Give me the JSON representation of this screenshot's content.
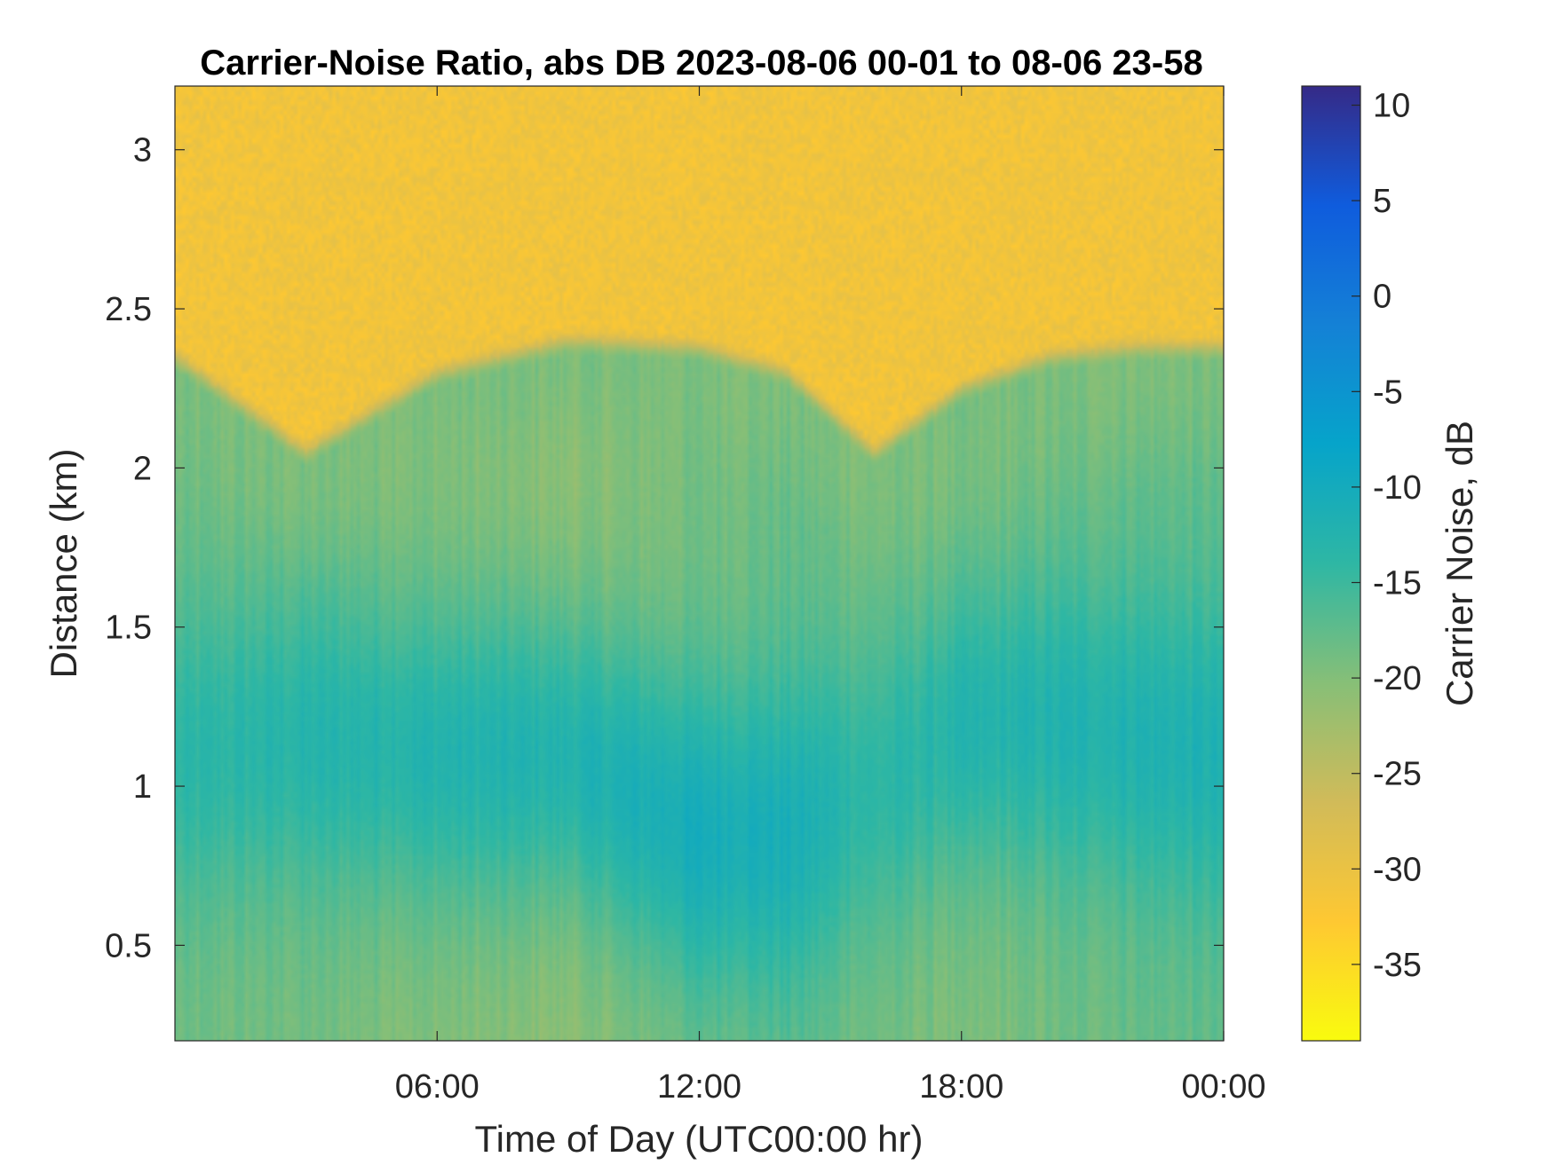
{
  "chart_data": {
    "type": "heatmap",
    "title": "Carrier-Noise Ratio, abs DB 2023-08-06 00-01 to 08-06 23-58",
    "xlabel": "Time of Day (UTC00:00 hr)",
    "ylabel": "Distance (km)",
    "colorbar_label": "Carrier Noise, dB",
    "x_range_hours": [
      0,
      24
    ],
    "x_ticks": [
      {
        "hour": 6,
        "label": "06:00"
      },
      {
        "hour": 12,
        "label": "12:00"
      },
      {
        "hour": 18,
        "label": "18:00"
      },
      {
        "hour": 24,
        "label": "00:00"
      }
    ],
    "y_range_km": [
      0.2,
      3.2
    ],
    "y_ticks": [
      {
        "value": 0.5,
        "label": "0.5"
      },
      {
        "value": 1,
        "label": "1"
      },
      {
        "value": 1.5,
        "label": "1.5"
      },
      {
        "value": 2,
        "label": "2"
      },
      {
        "value": 2.5,
        "label": "2.5"
      },
      {
        "value": 3,
        "label": "3"
      }
    ],
    "color_range_db": [
      -39,
      11
    ],
    "colorbar_ticks": [
      {
        "value": 10,
        "label": "10"
      },
      {
        "value": 5,
        "label": "5"
      },
      {
        "value": 0,
        "label": "0"
      },
      {
        "value": -5,
        "label": "-5"
      },
      {
        "value": -10,
        "label": "-10"
      },
      {
        "value": -15,
        "label": "-15"
      },
      {
        "value": -20,
        "label": "-20"
      },
      {
        "value": -25,
        "label": "-25"
      },
      {
        "value": -30,
        "label": "-30"
      },
      {
        "value": -35,
        "label": "-35"
      }
    ],
    "colormap": "parula-reversed",
    "colormap_stops": [
      "#352a87",
      "#0f5cdd",
      "#1481d6",
      "#06a4ca",
      "#2eb7a4",
      "#87bf77",
      "#d1bb59",
      "#fec832",
      "#f9fb0e"
    ],
    "grid": false,
    "approx_field": {
      "time_hours": [
        0,
        3,
        6,
        9,
        12,
        14,
        16,
        18,
        20,
        22,
        24
      ],
      "background_top_db": -31,
      "boundary_height_km": [
        2.35,
        2.05,
        2.3,
        2.4,
        2.38,
        2.3,
        2.05,
        2.25,
        2.35,
        2.38,
        2.38
      ],
      "core_height_km": [
        1.1,
        1.15,
        1.1,
        1.1,
        0.85,
        0.85,
        1.0,
        1.2,
        1.2,
        1.15,
        1.1
      ],
      "core_db": [
        -14,
        -13,
        -12.5,
        -12.5,
        -10.5,
        -11,
        -14,
        -13,
        -12.5,
        -12,
        -12
      ],
      "surface_db": [
        -19,
        -19,
        -20,
        -21,
        -19,
        -18,
        -19,
        -20,
        -19,
        -18,
        -18
      ]
    }
  }
}
